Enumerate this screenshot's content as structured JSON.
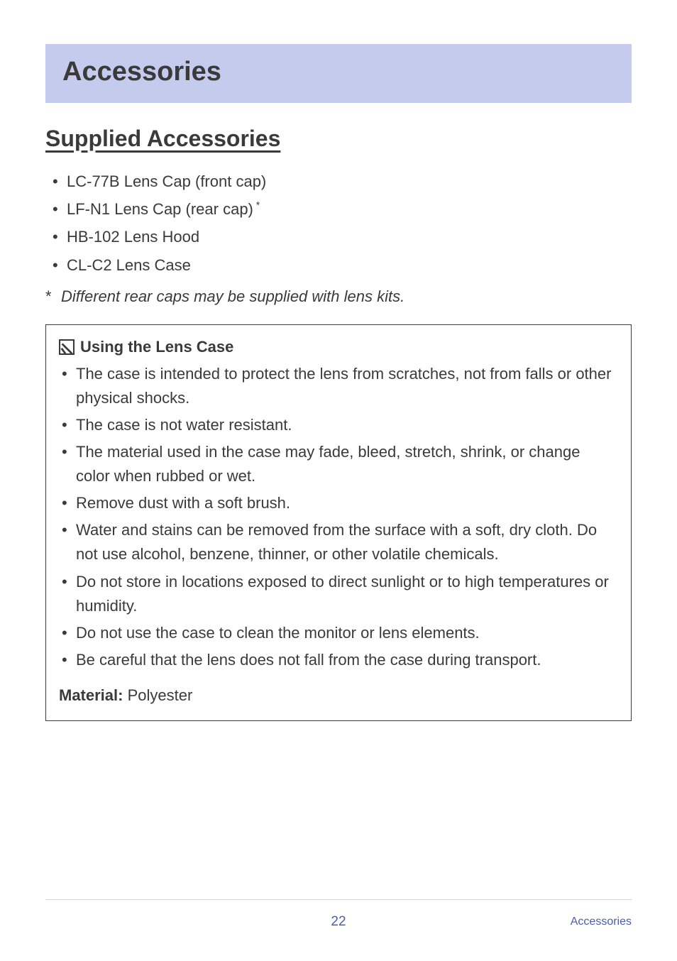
{
  "banner": {
    "title": "Accessories"
  },
  "section": {
    "title": "Supplied Accessories"
  },
  "supplied_items": [
    "LC-77B Lens Cap (front cap)",
    "LF-N1 Lens Cap (rear cap)",
    "HB-102 Lens Hood",
    "CL-C2 Lens Case"
  ],
  "supplied_sup_index": 1,
  "supplied_sup_mark": "*",
  "footnote": {
    "mark": "*",
    "text": "Different rear caps may be supplied with lens kits."
  },
  "box": {
    "title": "Using the Lens Case",
    "items": [
      "The case is intended to protect the lens from scratches, not from falls or other physical shocks.",
      "The case is not water resistant.",
      "The material used in the case may fade, bleed, stretch, shrink, or change color when rubbed or wet.",
      "Remove dust with a soft brush.",
      "Water and stains can be removed from the surface with a soft, dry cloth. Do not use alcohol, benzene, thinner, or other volatile chemicals.",
      "Do not store in locations exposed to direct sunlight or to high temperatures or humidity.",
      "Do not use the case to clean the monitor or lens elements.",
      "Be careful that the lens does not fall from the case during transport."
    ],
    "material_label": "Material:",
    "material_value": " Polyester"
  },
  "footer": {
    "page": "22",
    "label": "Accessories"
  },
  "colors": {
    "banner_bg": "#c4cbed",
    "text": "#3a3a3a",
    "accent": "#4a5db0",
    "rule": "#d0d0d0"
  }
}
